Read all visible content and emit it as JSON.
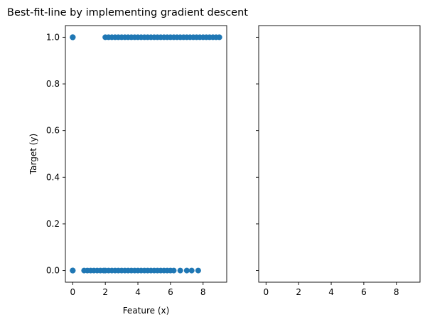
{
  "figure": {
    "title": "Best-fit-line by implementing gradient descent"
  },
  "chart_data": [
    {
      "type": "scatter",
      "xlabel": "Feature (x)",
      "ylabel": "Target (y)",
      "xlim": [
        -0.45,
        9.45
      ],
      "ylim": [
        -0.05,
        1.05
      ],
      "xticks": [
        0,
        2,
        4,
        6,
        8
      ],
      "yticks": [
        0.0,
        0.2,
        0.4,
        0.6,
        0.8,
        1.0
      ],
      "xtick_labels": [
        "0",
        "2",
        "4",
        "6",
        "8"
      ],
      "ytick_labels": [
        "0.0",
        "0.2",
        "0.4",
        "0.6",
        "0.8",
        "1.0"
      ],
      "grid": false,
      "series": [
        {
          "color": "#1f77b4",
          "x": [
            0.0,
            0.0,
            0.0,
            0.0,
            2.0,
            2.2,
            2.4,
            2.6,
            2.8,
            3.0,
            3.2,
            3.4,
            3.6,
            3.8,
            4.0,
            4.2,
            4.4,
            4.6,
            4.8,
            5.0,
            5.2,
            5.4,
            5.6,
            5.8,
            6.0,
            6.2,
            6.4,
            6.6,
            6.8,
            7.0,
            7.2,
            7.4,
            7.6,
            7.8,
            8.0,
            8.2,
            8.4,
            8.6,
            8.8,
            9.0,
            0.0,
            0.0,
            0.0,
            0.7,
            0.9,
            1.1,
            1.3,
            1.5,
            1.7,
            1.9,
            2.0,
            2.2,
            2.4,
            2.6,
            2.8,
            3.0,
            3.2,
            3.4,
            3.6,
            3.8,
            4.0,
            4.2,
            4.4,
            4.6,
            4.8,
            5.0,
            5.2,
            5.4,
            5.6,
            5.8,
            6.0,
            6.2,
            6.6,
            7.0,
            7.3,
            7.7
          ],
          "y": [
            1,
            1,
            1,
            1,
            1,
            1,
            1,
            1,
            1,
            1,
            1,
            1,
            1,
            1,
            1,
            1,
            1,
            1,
            1,
            1,
            1,
            1,
            1,
            1,
            1,
            1,
            1,
            1,
            1,
            1,
            1,
            1,
            1,
            1,
            1,
            1,
            1,
            1,
            1,
            1,
            0,
            0,
            0,
            0,
            0,
            0,
            0,
            0,
            0,
            0,
            0,
            0,
            0,
            0,
            0,
            0,
            0,
            0,
            0,
            0,
            0,
            0,
            0,
            0,
            0,
            0,
            0,
            0,
            0,
            0,
            0,
            0,
            0,
            0,
            0,
            0
          ]
        }
      ]
    },
    {
      "type": "scatter",
      "xlabel": "",
      "ylabel": "",
      "xlim": [
        -0.45,
        9.45
      ],
      "ylim": [
        -0.05,
        1.05
      ],
      "xticks": [
        0,
        2,
        4,
        6,
        8
      ],
      "xtick_labels": [
        "0",
        "2",
        "4",
        "6",
        "8"
      ],
      "yticks_shared": true,
      "grid": false,
      "series": []
    }
  ]
}
